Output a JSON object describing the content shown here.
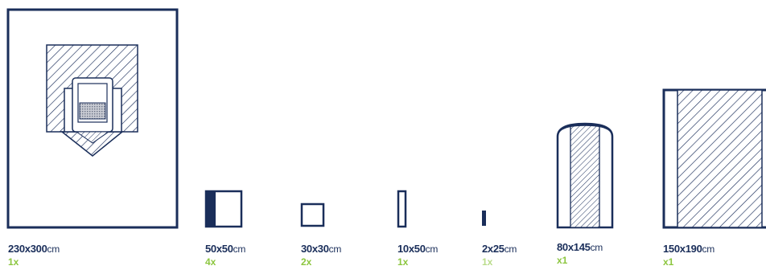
{
  "colors": {
    "outline": "#1a2e5a",
    "hatch": "#1a2e5a",
    "quantity": "#8cc63f",
    "quantity_light": "#b9dc8a",
    "background": "#ffffff"
  },
  "items": [
    {
      "size": "230x300",
      "unit": "cm",
      "quantity": "1x"
    },
    {
      "size": "50x50",
      "unit": "cm",
      "quantity": "4x"
    },
    {
      "size": "30x30",
      "unit": "cm",
      "quantity": "2x"
    },
    {
      "size": "10x50",
      "unit": "cm",
      "quantity": "1x"
    },
    {
      "size": "2x25",
      "unit": "cm",
      "quantity": "1x"
    },
    {
      "size": "80x145",
      "unit": "cm",
      "quantity": "x1"
    },
    {
      "size": "150x190",
      "unit": "cm",
      "quantity": "x1"
    }
  ]
}
